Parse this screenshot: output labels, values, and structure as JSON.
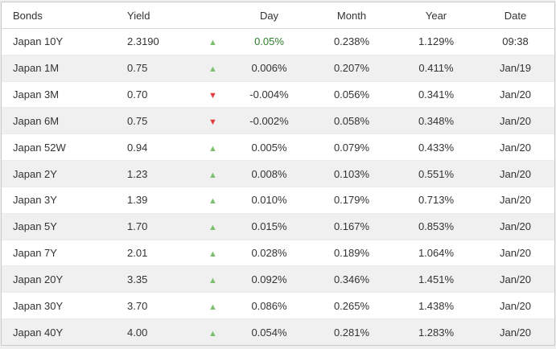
{
  "table": {
    "columns": [
      "Bonds",
      "Yield",
      "",
      "Day",
      "Month",
      "Year",
      "Date"
    ],
    "rows": [
      {
        "bond": "Japan 10Y",
        "yield": "2.3190",
        "direction": "up",
        "day": "0.05%",
        "day_colored": true,
        "month": "0.238%",
        "year": "1.129%",
        "date": "09:38"
      },
      {
        "bond": "Japan 1M",
        "yield": "0.75",
        "direction": "up",
        "day": "0.006%",
        "day_colored": false,
        "month": "0.207%",
        "year": "0.411%",
        "date": "Jan/19"
      },
      {
        "bond": "Japan 3M",
        "yield": "0.70",
        "direction": "down",
        "day": "-0.004%",
        "day_colored": false,
        "month": "0.056%",
        "year": "0.341%",
        "date": "Jan/20"
      },
      {
        "bond": "Japan 6M",
        "yield": "0.75",
        "direction": "down",
        "day": "-0.002%",
        "day_colored": false,
        "month": "0.058%",
        "year": "0.348%",
        "date": "Jan/20"
      },
      {
        "bond": "Japan 52W",
        "yield": "0.94",
        "direction": "up",
        "day": "0.005%",
        "day_colored": false,
        "month": "0.079%",
        "year": "0.433%",
        "date": "Jan/20"
      },
      {
        "bond": "Japan 2Y",
        "yield": "1.23",
        "direction": "up",
        "day": "0.008%",
        "day_colored": false,
        "month": "0.103%",
        "year": "0.551%",
        "date": "Jan/20"
      },
      {
        "bond": "Japan 3Y",
        "yield": "1.39",
        "direction": "up",
        "day": "0.010%",
        "day_colored": false,
        "month": "0.179%",
        "year": "0.713%",
        "date": "Jan/20"
      },
      {
        "bond": "Japan 5Y",
        "yield": "1.70",
        "direction": "up",
        "day": "0.015%",
        "day_colored": false,
        "month": "0.167%",
        "year": "0.853%",
        "date": "Jan/20"
      },
      {
        "bond": "Japan 7Y",
        "yield": "2.01",
        "direction": "up",
        "day": "0.028%",
        "day_colored": false,
        "month": "0.189%",
        "year": "1.064%",
        "date": "Jan/20"
      },
      {
        "bond": "Japan 20Y",
        "yield": "3.35",
        "direction": "up",
        "day": "0.092%",
        "day_colored": false,
        "month": "0.346%",
        "year": "1.451%",
        "date": "Jan/20"
      },
      {
        "bond": "Japan 30Y",
        "yield": "3.70",
        "direction": "up",
        "day": "0.086%",
        "day_colored": false,
        "month": "0.265%",
        "year": "1.438%",
        "date": "Jan/20"
      },
      {
        "bond": "Japan 40Y",
        "yield": "4.00",
        "direction": "up",
        "day": "0.054%",
        "day_colored": false,
        "month": "0.281%",
        "year": "1.283%",
        "date": "Jan/20"
      }
    ]
  },
  "icons": {
    "up": "▲",
    "down": "▼"
  },
  "colors": {
    "positive_day_text": "#2d7d2d",
    "arrow_up": "#7cc06e",
    "arrow_down": "#e23c3c",
    "row_alt_bg": "#f0f0f0",
    "text": "#333333",
    "border": "#c9c9c9"
  }
}
